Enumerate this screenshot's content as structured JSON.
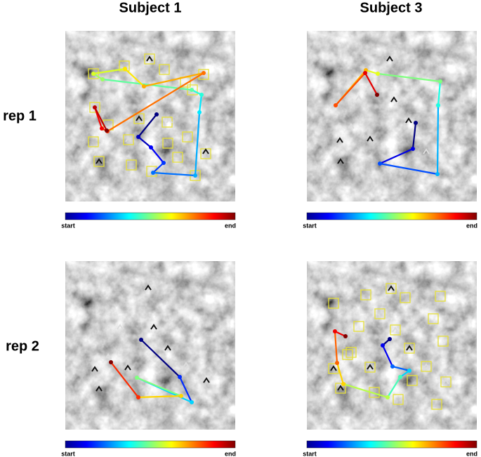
{
  "columns": [
    "Subject 1",
    "Subject 3"
  ],
  "rows": [
    "rep 1",
    "rep 2"
  ],
  "colorbars": [
    {
      "start": "start",
      "end": "end"
    },
    {
      "start": "start",
      "end": "end"
    },
    {
      "start": "start",
      "end": "end"
    },
    {
      "start": "start",
      "end": "end"
    }
  ]
}
